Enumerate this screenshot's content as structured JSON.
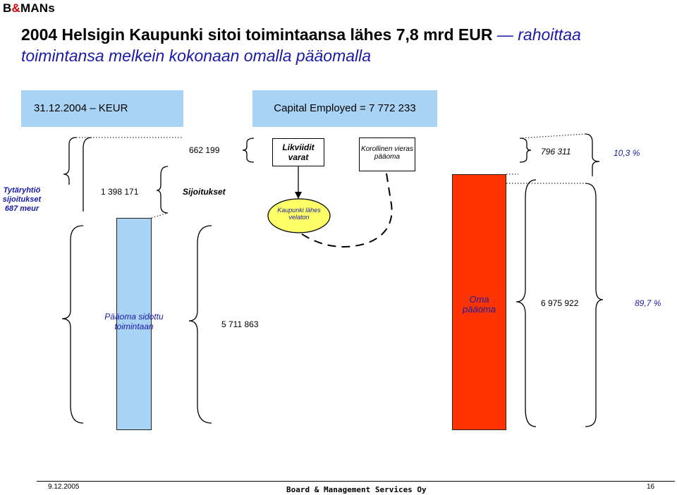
{
  "logo": {
    "b": "B",
    "amp": "&",
    "mans": "MANs"
  },
  "title": {
    "part1": "2004 Helsigin Kaupunki sitoi toimintaansa lähes 7,8 mrd EUR",
    "dash": " —",
    "part2": " rahoittaa",
    "line2": "toimintansa melkein kokonaan omalla pääomalla"
  },
  "header": {
    "date_label": "31.12.2004 – KEUR",
    "capital_employed": "Capital Employed = 7 772 233"
  },
  "labels": {
    "v662": "662 199",
    "likviidit": "Likviidit varat",
    "korollinen": "Korollinen vieras pääoma",
    "v796": "796 311",
    "pct103": "10,3 %",
    "tytar": "Tytäryhtiö sijoitukset 687 meur",
    "v1398": "1 398 171",
    "sijoitukset": "Sijoitukset",
    "kaupunki": "Kaupunki lähes velaton",
    "paaoma_sidottu": "Pääoma sidottu toimintaan",
    "v5711": "5 711 863",
    "oma_paaoma": "Oma pääoma",
    "v6975": "6 975 922",
    "pct897": "89,7 %"
  },
  "footer": {
    "date": "9.12.2005",
    "company": "Board & Management Services Oy",
    "page": "16"
  },
  "colors": {
    "blue_fill": "#a9d3f5",
    "red_fill": "#ff3300",
    "ellipse_fill": "#ffff66",
    "title_blue": "#1a1aa6"
  }
}
